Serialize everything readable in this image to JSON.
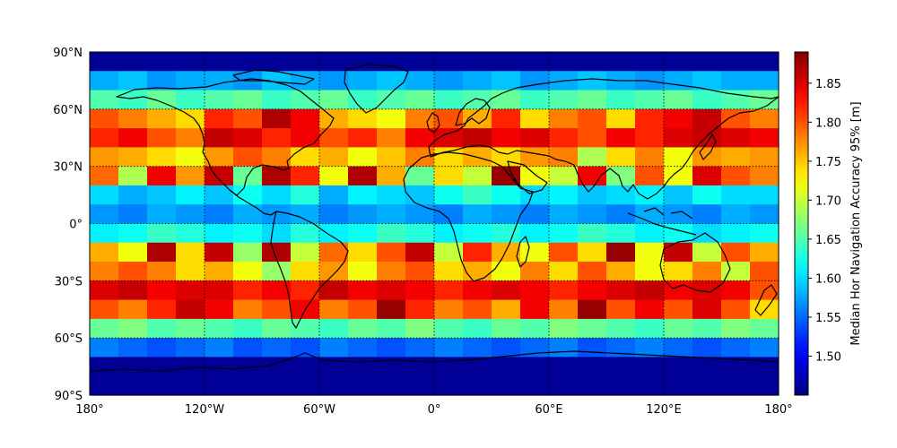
{
  "chart_data": {
    "type": "heatmap",
    "projection": "plate-carree",
    "cell_size_deg": 15,
    "lat_band_rows_deg": 10,
    "xlim": [
      -180,
      180
    ],
    "ylim": [
      -90,
      90
    ],
    "x_ticks": [
      {
        "value": -180,
        "label": "180°"
      },
      {
        "value": -120,
        "label": "120°W"
      },
      {
        "value": -60,
        "label": "60°W"
      },
      {
        "value": 0,
        "label": "0°"
      },
      {
        "value": 60,
        "label": "60°E"
      },
      {
        "value": 120,
        "label": "120°E"
      },
      {
        "value": 180,
        "label": "180°"
      }
    ],
    "y_ticks": [
      {
        "value": 90,
        "label": "90°N"
      },
      {
        "value": 60,
        "label": "60°N"
      },
      {
        "value": 30,
        "label": "30°N"
      },
      {
        "value": 0,
        "label": "0°"
      },
      {
        "value": -30,
        "label": "30°S"
      },
      {
        "value": -60,
        "label": "60°S"
      },
      {
        "value": -90,
        "label": "90°S"
      }
    ],
    "grid": true,
    "grid_style": "dotted",
    "coastlines": true,
    "colormap": "jet",
    "colorbar": {
      "label": "Median Hor Navigation Accuracy 95% [m]",
      "range": [
        1.45,
        1.89
      ],
      "ticks": [
        1.5,
        1.55,
        1.6,
        1.65,
        1.7,
        1.75,
        1.8,
        1.85
      ],
      "tick_labels": [
        "1.50",
        "1.55",
        "1.60",
        "1.65",
        "1.70",
        "1.75",
        "1.80",
        "1.85"
      ]
    },
    "bands": [
      {
        "lat_range": [
          80,
          90
        ],
        "values": [
          1.46,
          1.46,
          1.46,
          1.46,
          1.46,
          1.46,
          1.46,
          1.46,
          1.46,
          1.46,
          1.46,
          1.46,
          1.46,
          1.46,
          1.46,
          1.46,
          1.46,
          1.46,
          1.46,
          1.46,
          1.46,
          1.46,
          1.46,
          1.46
        ]
      },
      {
        "lat_range": [
          70,
          80
        ],
        "values": [
          1.58,
          1.59,
          1.57,
          1.58,
          1.58,
          1.57,
          1.59,
          1.58,
          1.57,
          1.58,
          1.59,
          1.58,
          1.57,
          1.58,
          1.59,
          1.57,
          1.58,
          1.59,
          1.58,
          1.57,
          1.58,
          1.59,
          1.58,
          1.58
        ]
      },
      {
        "lat_range": [
          60,
          70
        ],
        "values": [
          1.65,
          1.64,
          1.66,
          1.64,
          1.65,
          1.66,
          1.64,
          1.65,
          1.66,
          1.64,
          1.65,
          1.66,
          1.64,
          1.65,
          1.66,
          1.64,
          1.65,
          1.66,
          1.64,
          1.65,
          1.66,
          1.64,
          1.65,
          1.66
        ]
      },
      {
        "lat_range": [
          50,
          60
        ],
        "values": [
          1.8,
          1.78,
          1.76,
          1.74,
          1.82,
          1.8,
          1.87,
          1.84,
          1.76,
          1.74,
          1.72,
          1.78,
          1.8,
          1.76,
          1.82,
          1.74,
          1.78,
          1.8,
          1.74,
          1.82,
          1.84,
          1.86,
          1.8,
          1.78
        ]
      },
      {
        "lat_range": [
          40,
          50
        ],
        "values": [
          1.82,
          1.84,
          1.8,
          1.78,
          1.86,
          1.85,
          1.82,
          1.84,
          1.8,
          1.82,
          1.78,
          1.84,
          1.85,
          1.86,
          1.84,
          1.85,
          1.82,
          1.8,
          1.84,
          1.82,
          1.85,
          1.86,
          1.85,
          1.84
        ]
      },
      {
        "lat_range": [
          30,
          40
        ],
        "values": [
          1.77,
          1.76,
          1.74,
          1.72,
          1.77,
          1.8,
          1.78,
          1.74,
          1.76,
          1.72,
          1.75,
          1.78,
          1.74,
          1.76,
          1.74,
          1.77,
          1.78,
          1.69,
          1.74,
          1.78,
          1.72,
          1.77,
          1.76,
          1.77
        ]
      },
      {
        "lat_range": [
          20,
          30
        ],
        "values": [
          1.79,
          1.69,
          1.84,
          1.77,
          1.86,
          1.66,
          1.87,
          1.82,
          1.72,
          1.87,
          1.76,
          1.66,
          1.74,
          1.7,
          1.88,
          1.72,
          1.7,
          1.84,
          1.67,
          1.8,
          1.72,
          1.85,
          1.8,
          1.78
        ]
      },
      {
        "lat_range": [
          10,
          20
        ],
        "values": [
          1.6,
          1.58,
          1.59,
          1.61,
          1.59,
          1.62,
          1.6,
          1.63,
          1.58,
          1.61,
          1.6,
          1.59,
          1.62,
          1.64,
          1.62,
          1.6,
          1.61,
          1.59,
          1.6,
          1.61,
          1.59,
          1.62,
          1.6,
          1.6
        ]
      },
      {
        "lat_range": [
          0,
          10
        ],
        "values": [
          1.57,
          1.56,
          1.58,
          1.57,
          1.56,
          1.58,
          1.57,
          1.58,
          1.56,
          1.57,
          1.58,
          1.57,
          1.56,
          1.58,
          1.57,
          1.56,
          1.58,
          1.57,
          1.56,
          1.58,
          1.57,
          1.56,
          1.58,
          1.57
        ]
      },
      {
        "lat_range": [
          -10,
          0
        ],
        "values": [
          1.61,
          1.62,
          1.64,
          1.63,
          1.61,
          1.62,
          1.6,
          1.63,
          1.61,
          1.62,
          1.64,
          1.63,
          1.61,
          1.62,
          1.63,
          1.61,
          1.62,
          1.64,
          1.63,
          1.61,
          1.62,
          1.6,
          1.61,
          1.62
        ]
      },
      {
        "lat_range": [
          -20,
          -10
        ],
        "values": [
          1.76,
          1.72,
          1.87,
          1.74,
          1.86,
          1.68,
          1.87,
          1.7,
          1.79,
          1.74,
          1.8,
          1.86,
          1.7,
          1.82,
          1.76,
          1.72,
          1.8,
          1.74,
          1.88,
          1.72,
          1.86,
          1.7,
          1.8,
          1.76
        ]
      },
      {
        "lat_range": [
          -30,
          -20
        ],
        "values": [
          1.78,
          1.8,
          1.78,
          1.74,
          1.76,
          1.72,
          1.68,
          1.74,
          1.77,
          1.72,
          1.78,
          1.8,
          1.74,
          1.76,
          1.72,
          1.78,
          1.74,
          1.8,
          1.76,
          1.72,
          1.74,
          1.78,
          1.7,
          1.8
        ]
      },
      {
        "lat_range": [
          -40,
          -30
        ],
        "values": [
          1.85,
          1.86,
          1.84,
          1.85,
          1.85,
          1.82,
          1.84,
          1.82,
          1.86,
          1.84,
          1.85,
          1.84,
          1.82,
          1.84,
          1.85,
          1.84,
          1.82,
          1.84,
          1.85,
          1.86,
          1.84,
          1.85,
          1.84,
          1.8
        ]
      },
      {
        "lat_range": [
          -50,
          -40
        ],
        "values": [
          1.8,
          1.78,
          1.82,
          1.86,
          1.84,
          1.78,
          1.8,
          1.84,
          1.78,
          1.8,
          1.88,
          1.82,
          1.78,
          1.8,
          1.76,
          1.84,
          1.78,
          1.88,
          1.8,
          1.84,
          1.8,
          1.85,
          1.8,
          1.74
        ]
      },
      {
        "lat_range": [
          -60,
          -50
        ],
        "values": [
          1.66,
          1.67,
          1.65,
          1.66,
          1.65,
          1.64,
          1.66,
          1.65,
          1.64,
          1.66,
          1.65,
          1.67,
          1.65,
          1.64,
          1.66,
          1.65,
          1.67,
          1.66,
          1.65,
          1.64,
          1.66,
          1.65,
          1.67,
          1.66
        ]
      },
      {
        "lat_range": [
          -70,
          -60
        ],
        "values": [
          1.56,
          1.55,
          1.54,
          1.55,
          1.56,
          1.54,
          1.55,
          1.54,
          1.56,
          1.55,
          1.54,
          1.55,
          1.56,
          1.55,
          1.54,
          1.55,
          1.56,
          1.54,
          1.55,
          1.56,
          1.55,
          1.54,
          1.55,
          1.56
        ]
      },
      {
        "lat_range": [
          -80,
          -70
        ],
        "values": [
          1.46,
          1.46,
          1.46,
          1.46,
          1.46,
          1.46,
          1.46,
          1.46,
          1.46,
          1.46,
          1.46,
          1.46,
          1.46,
          1.46,
          1.46,
          1.46,
          1.46,
          1.46,
          1.46,
          1.46,
          1.46,
          1.46,
          1.46,
          1.46
        ]
      },
      {
        "lat_range": [
          -90,
          -80
        ],
        "values": [
          1.46,
          1.46,
          1.46,
          1.46,
          1.46,
          1.46,
          1.46,
          1.46,
          1.46,
          1.46,
          1.46,
          1.46,
          1.46,
          1.46,
          1.46,
          1.46,
          1.46,
          1.46,
          1.46,
          1.46,
          1.46,
          1.46,
          1.46,
          1.46
        ]
      }
    ]
  }
}
